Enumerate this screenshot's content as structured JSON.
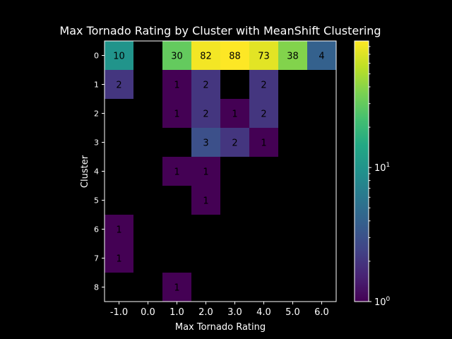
{
  "chart_data": {
    "type": "heatmap",
    "title": "Max Tornado Rating by Cluster with MeanShift Clustering",
    "xlabel": "Max Tornado Rating",
    "ylabel": "Cluster",
    "x_categories": [
      "-1.0",
      "0.0",
      "1.0",
      "2.0",
      "3.0",
      "4.0",
      "5.0",
      "6.0"
    ],
    "y_categories": [
      "0",
      "1",
      "2",
      "3",
      "4",
      "5",
      "6",
      "7",
      "8"
    ],
    "values": [
      [
        10,
        null,
        30,
        82,
        88,
        73,
        38,
        4
      ],
      [
        2,
        null,
        1,
        2,
        null,
        2,
        null,
        null
      ],
      [
        null,
        null,
        1,
        2,
        1,
        2,
        null,
        null
      ],
      [
        null,
        null,
        null,
        3,
        2,
        1,
        null,
        null
      ],
      [
        null,
        null,
        1,
        1,
        null,
        null,
        null,
        null
      ],
      [
        null,
        null,
        null,
        1,
        null,
        null,
        null,
        null
      ],
      [
        1,
        null,
        null,
        null,
        null,
        null,
        null,
        null
      ],
      [
        1,
        null,
        null,
        null,
        null,
        null,
        null,
        null
      ],
      [
        null,
        null,
        1,
        null,
        null,
        null,
        null,
        null
      ]
    ],
    "colormap": "viridis",
    "color_scale": "log",
    "color_range": [
      1,
      88
    ],
    "colorbar_ticks": [
      {
        "value": 1,
        "base": "10",
        "exp": "0"
      },
      {
        "value": 10,
        "base": "10",
        "exp": "1"
      }
    ],
    "background": "#000000",
    "annotation_dark_color": "#000000"
  }
}
